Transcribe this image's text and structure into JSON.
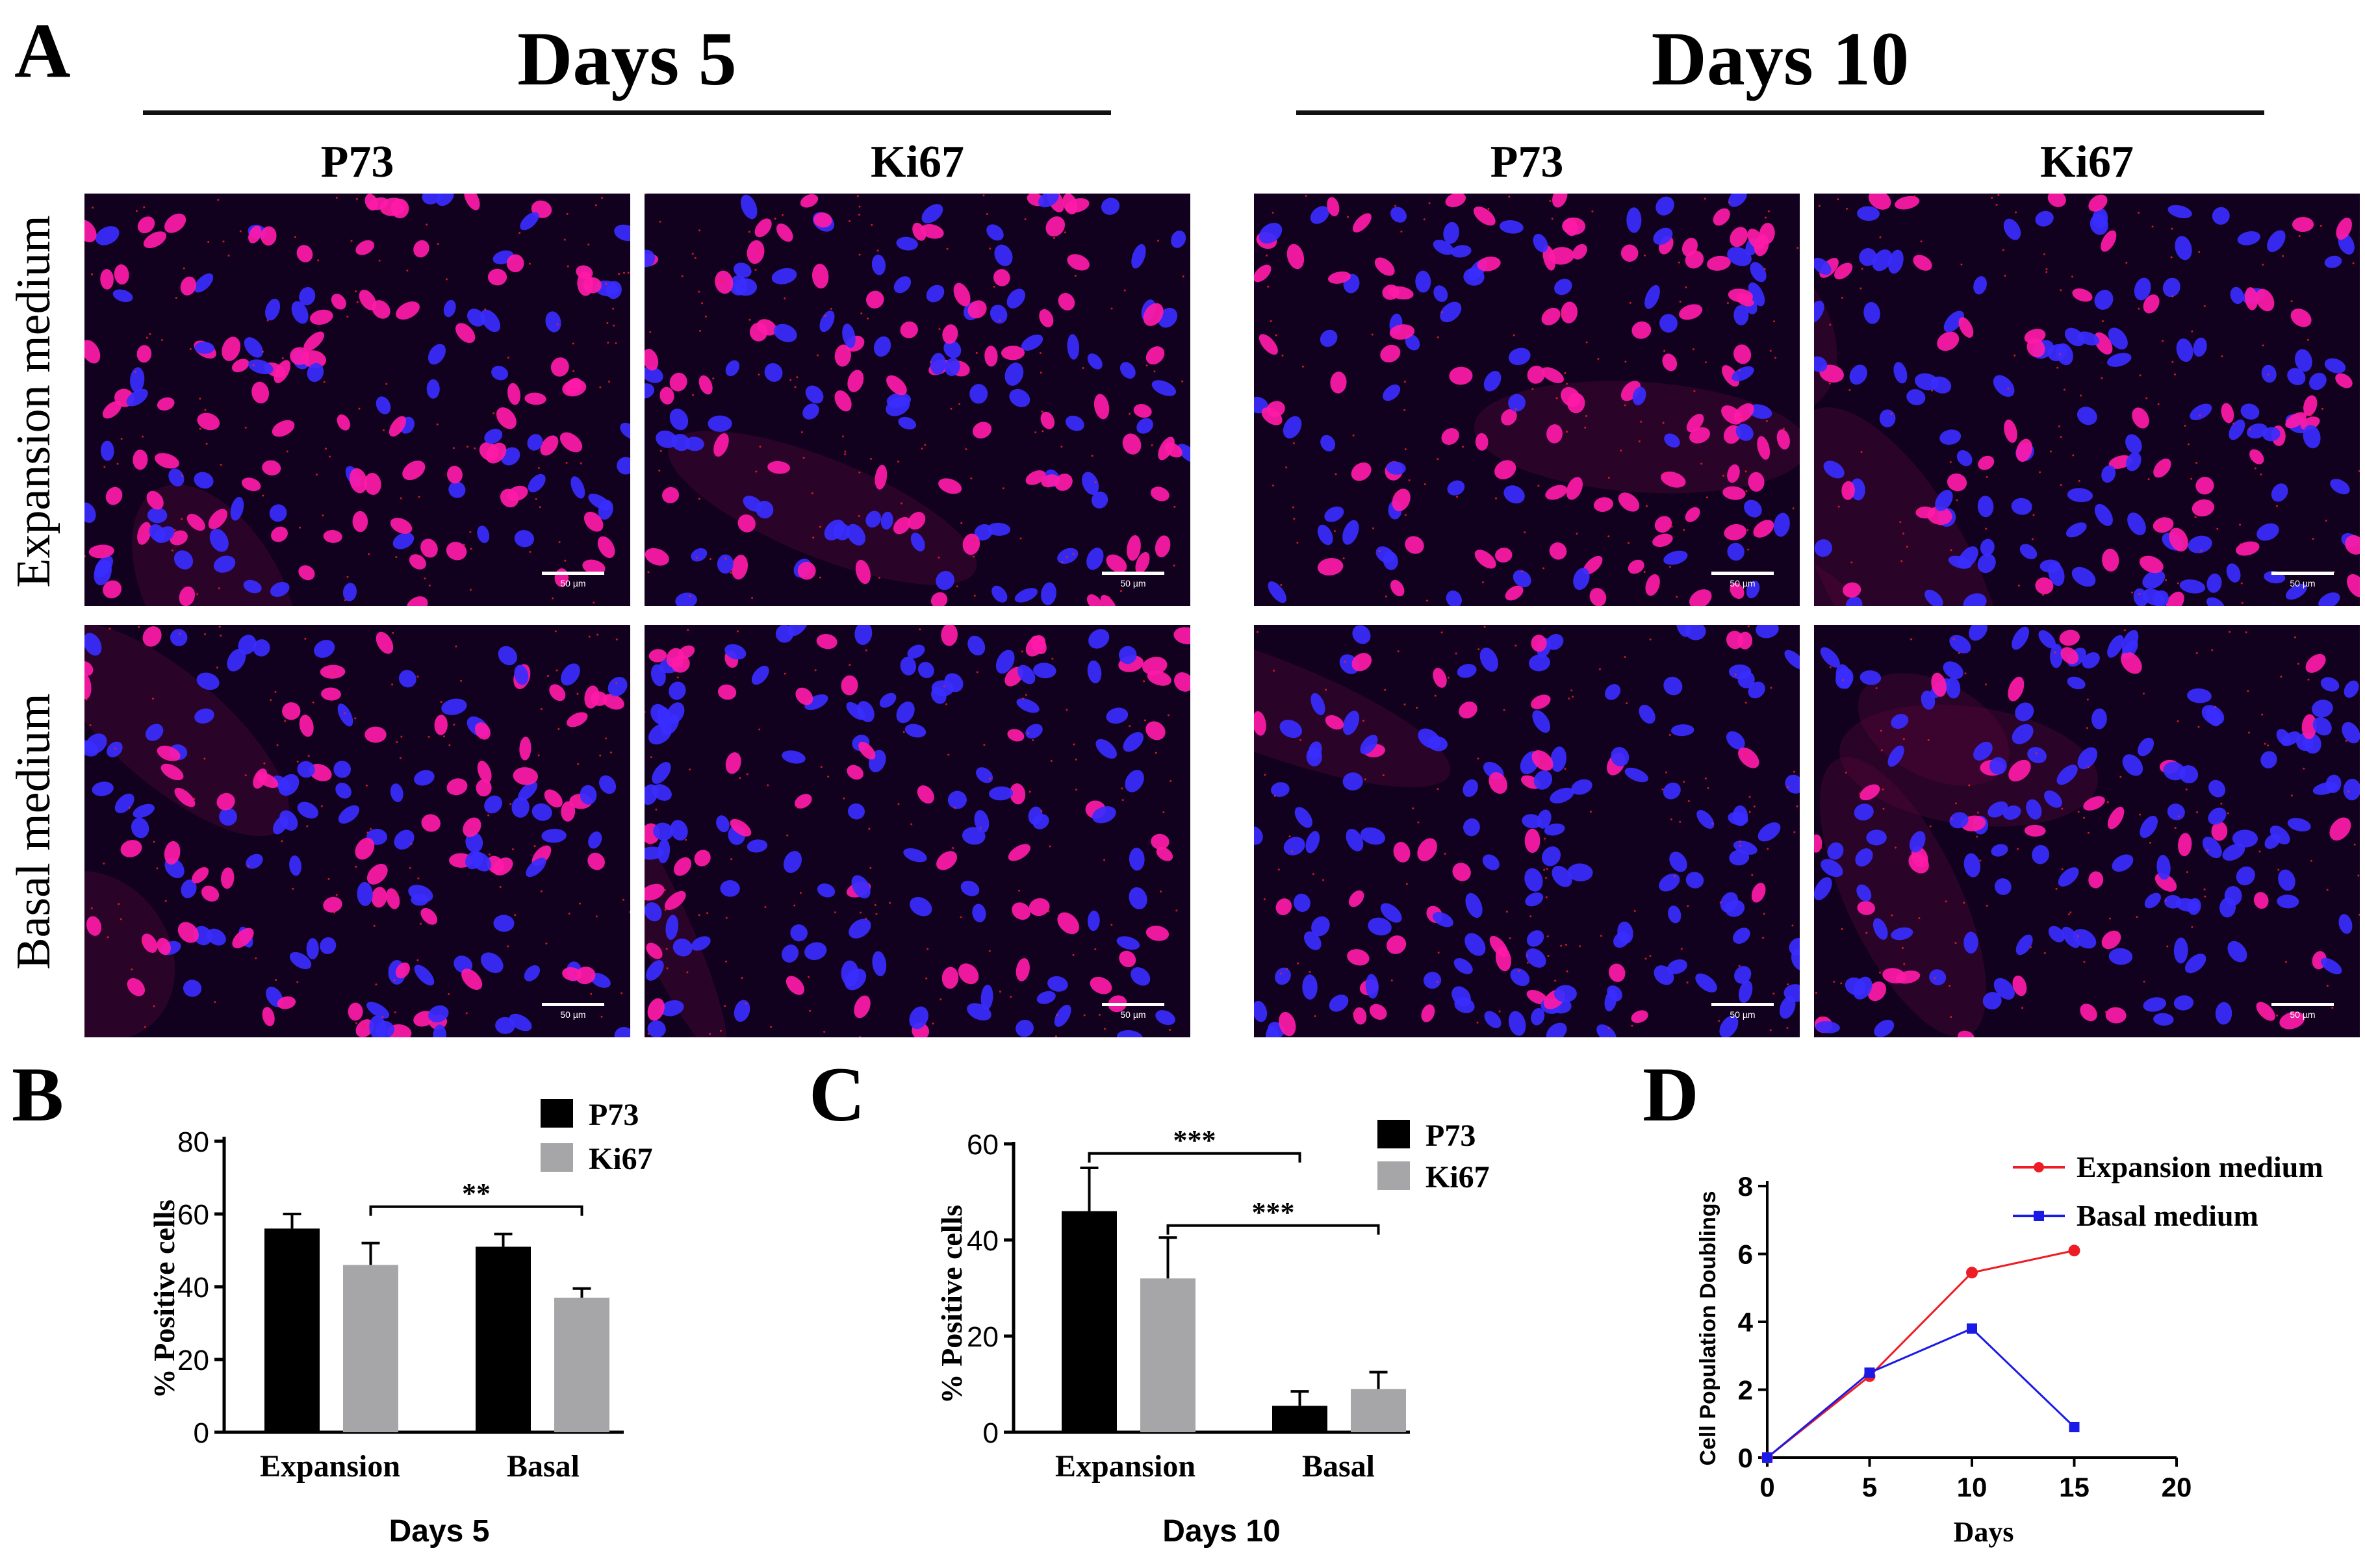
{
  "panel_a": {
    "letter": "A",
    "day5_title": "Days 5",
    "day10_title": "Days 10",
    "col_labels": [
      "P73",
      "Ki67",
      "P73",
      "Ki67"
    ],
    "row_labels": [
      "Expansion medium",
      "Basal medium"
    ],
    "scale_label": "50 µm"
  },
  "colors": {
    "bar_p73": "#000000",
    "bar_ki67": "#a6a6a8",
    "line_expansion": "#ee1c25",
    "line_basal": "#1a1ae6",
    "nucleus_blue": "#3a2cff",
    "nucleus_pink": "#ff1aa8"
  },
  "chart_data": [
    {
      "panel": "B",
      "type": "bar",
      "title": "Days 5",
      "xlabel": "Days 5",
      "ylabel": "% Positive cells",
      "ylim": [
        0,
        80
      ],
      "yticks": [
        "0",
        "20",
        "40",
        "60",
        "80"
      ],
      "categories": [
        "Expansion",
        "Basal"
      ],
      "series": [
        {
          "name": "P73",
          "values": [
            56,
            51
          ],
          "errors": [
            4,
            3.5
          ]
        },
        {
          "name": "Ki67",
          "values": [
            46,
            37
          ],
          "errors": [
            6,
            2.5
          ]
        }
      ],
      "annotations": [
        {
          "text": "**",
          "from": "Expansion.Ki67",
          "to": "Basal.Ki67",
          "y": 62
        }
      ],
      "legend": "top-right"
    },
    {
      "panel": "C",
      "type": "bar",
      "title": "Days 10",
      "xlabel": "Days 10",
      "ylabel": "% Positive cells",
      "ylim": [
        0,
        60
      ],
      "yticks": [
        "0",
        "20",
        "40",
        "60"
      ],
      "categories": [
        "Expansion",
        "Basal"
      ],
      "series": [
        {
          "name": "P73",
          "values": [
            46,
            5.5
          ],
          "errors": [
            9,
            3
          ]
        },
        {
          "name": "Ki67",
          "values": [
            32,
            9
          ],
          "errors": [
            8.5,
            3.5
          ]
        }
      ],
      "annotations": [
        {
          "text": "***",
          "from": "Expansion.P73",
          "to": "Basal.P73",
          "y": 58
        },
        {
          "text": "***",
          "from": "Expansion.Ki67",
          "to": "Basal.Ki67",
          "y": 43
        }
      ],
      "legend": "top-right"
    },
    {
      "panel": "D",
      "type": "line",
      "title": "",
      "xlabel": "Days",
      "ylabel": "Cell Population Doublings",
      "xlim": [
        0,
        20
      ],
      "ylim": [
        0,
        8
      ],
      "xticks": [
        "0",
        "5",
        "10",
        "15",
        "20"
      ],
      "yticks": [
        "0",
        "2",
        "4",
        "6",
        "8"
      ],
      "series": [
        {
          "name": "Expansion medium",
          "marker": "circle",
          "x": [
            0,
            5,
            10,
            15
          ],
          "y": [
            0,
            2.4,
            5.45,
            6.1
          ]
        },
        {
          "name": "Basal medium",
          "marker": "square",
          "x": [
            0,
            5,
            10,
            15
          ],
          "y": [
            0,
            2.5,
            3.8,
            0.9
          ]
        }
      ],
      "legend": "top-right"
    }
  ]
}
